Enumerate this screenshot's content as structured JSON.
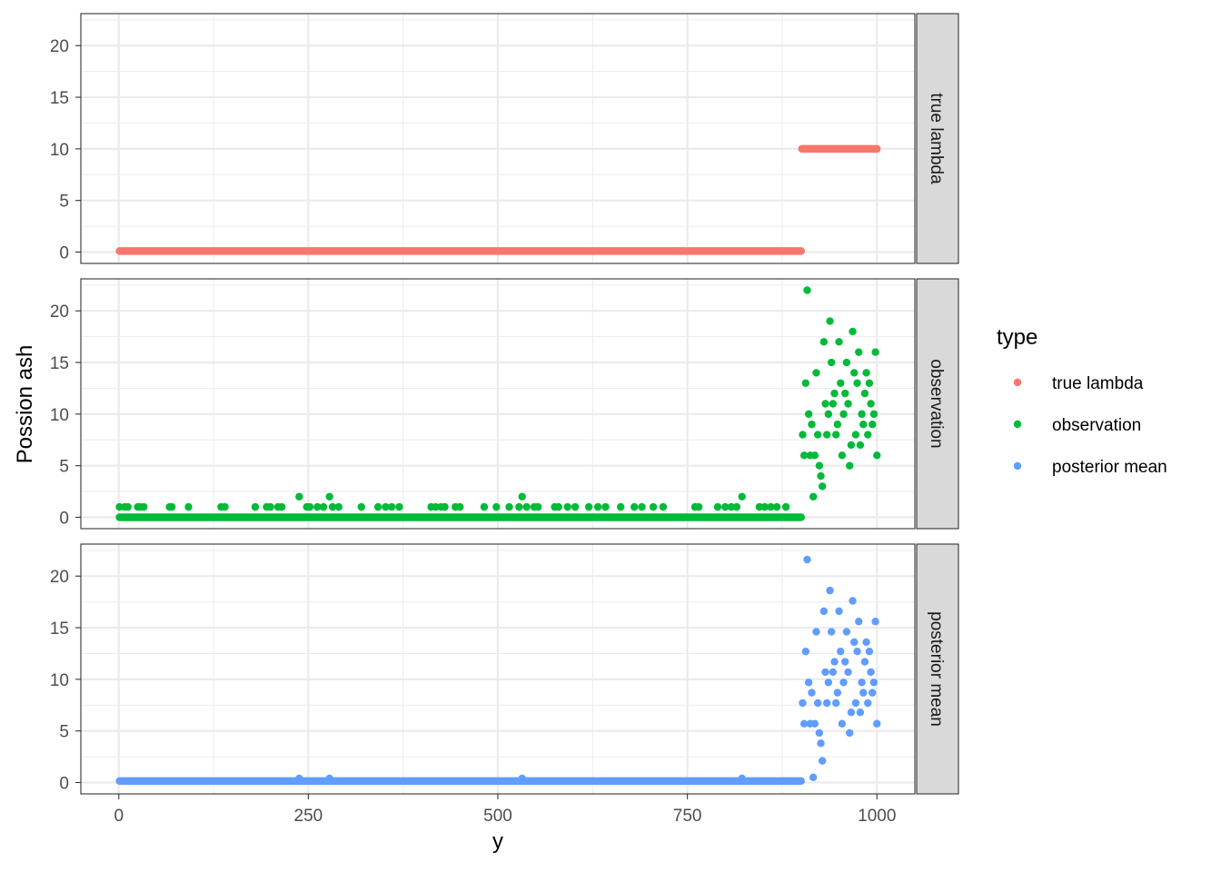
{
  "chart_data": {
    "type": "scatter",
    "xlabel": "y",
    "ylabel": "Possion ash",
    "xlim": [
      -50,
      1050
    ],
    "ylim": [
      -1.1,
      23.1
    ],
    "x_ticks": [
      0,
      250,
      500,
      750,
      1000
    ],
    "x_tick_labels": [
      "0",
      "250",
      "500",
      "750",
      "1000"
    ],
    "y_ticks": [
      0,
      5,
      10,
      15,
      20
    ],
    "y_tick_labels": [
      "0",
      "5",
      "10",
      "15",
      "20"
    ],
    "grid": true,
    "facets": [
      "true lambda",
      "observation",
      "posterior mean"
    ],
    "legend": {
      "title": "type",
      "position": "right",
      "entries": [
        {
          "label": "true lambda",
          "color": "#F8766D"
        },
        {
          "label": "observation",
          "color": "#00BA38"
        },
        {
          "label": "posterior mean",
          "color": "#619CFF"
        }
      ]
    },
    "series": [
      {
        "name": "true lambda",
        "color": "#F8766D",
        "segments": [
          {
            "x_start": 1,
            "x_end": 900,
            "value": 0.1
          },
          {
            "x_start": 901,
            "x_end": 1000,
            "value": 10
          }
        ]
      },
      {
        "name": "observation",
        "color": "#00BA38",
        "baseline": {
          "x_start": 1,
          "x_end": 900,
          "value": 0
        },
        "points_x": [
          1,
          8,
          12,
          25,
          28,
          33,
          67,
          70,
          92,
          135,
          140,
          180,
          195,
          200,
          210,
          215,
          238,
          248,
          252,
          262,
          270,
          278,
          282,
          290,
          320,
          342,
          352,
          360,
          370,
          412,
          418,
          425,
          430,
          444,
          450,
          482,
          498,
          515,
          528,
          532,
          538,
          548,
          553,
          575,
          580,
          592,
          602,
          620,
          632,
          642,
          662,
          680,
          690,
          705,
          718,
          760,
          765,
          790,
          800,
          808,
          815,
          822,
          845,
          852,
          860,
          868,
          880,
          902,
          904,
          906,
          908,
          910,
          912,
          914,
          916,
          918,
          920,
          922,
          924,
          926,
          928,
          930,
          932,
          934,
          936,
          938,
          940,
          942,
          944,
          946,
          948,
          950,
          952,
          954,
          956,
          958,
          960,
          962,
          964,
          966,
          968,
          970,
          972,
          974,
          976,
          978,
          980,
          982,
          984,
          986,
          988,
          990,
          992,
          994,
          996,
          998,
          1000
        ],
        "points_y": [
          1,
          1,
          1,
          1,
          1,
          1,
          1,
          1,
          1,
          1,
          1,
          1,
          1,
          1,
          1,
          1,
          2,
          1,
          1,
          1,
          1,
          2,
          1,
          1,
          1,
          1,
          1,
          1,
          1,
          1,
          1,
          1,
          1,
          1,
          1,
          1,
          1,
          1,
          1,
          2,
          1,
          1,
          1,
          1,
          1,
          1,
          1,
          1,
          1,
          1,
          1,
          1,
          1,
          1,
          1,
          1,
          1,
          1,
          1,
          1,
          1,
          2,
          1,
          1,
          1,
          1,
          1,
          8,
          6,
          13,
          22,
          10,
          6,
          9,
          2,
          6,
          14,
          8,
          5,
          4,
          3,
          17,
          11,
          8,
          10,
          19,
          15,
          11,
          12,
          8,
          9,
          17,
          13,
          6,
          10,
          12,
          15,
          11,
          5,
          7,
          18,
          14,
          8,
          13,
          16,
          7,
          10,
          9,
          12,
          14,
          8,
          13,
          11,
          9,
          10,
          16,
          6
        ]
      },
      {
        "name": "posterior mean",
        "color": "#619CFF",
        "baseline": {
          "x_start": 1,
          "x_end": 900,
          "value": 0.15
        },
        "points_x": [
          238,
          278,
          532,
          822,
          902,
          904,
          906,
          908,
          910,
          912,
          914,
          916,
          918,
          920,
          922,
          924,
          926,
          928,
          930,
          932,
          934,
          936,
          938,
          940,
          942,
          944,
          946,
          948,
          950,
          952,
          954,
          956,
          958,
          960,
          962,
          964,
          966,
          968,
          970,
          972,
          974,
          976,
          978,
          980,
          982,
          984,
          986,
          988,
          990,
          992,
          994,
          996,
          998,
          1000
        ],
        "points_y": [
          0.4,
          0.4,
          0.4,
          0.4,
          7.7,
          5.7,
          12.7,
          21.6,
          9.7,
          5.7,
          8.7,
          0.5,
          5.7,
          14.6,
          7.7,
          4.8,
          3.8,
          2.1,
          16.6,
          10.7,
          7.7,
          9.7,
          18.6,
          14.6,
          10.7,
          11.7,
          7.7,
          8.7,
          16.6,
          12.7,
          5.7,
          9.7,
          11.7,
          14.6,
          10.7,
          4.8,
          6.8,
          17.6,
          13.6,
          7.7,
          12.7,
          15.6,
          6.8,
          9.7,
          8.7,
          11.7,
          13.6,
          7.7,
          12.7,
          10.7,
          8.7,
          9.7,
          15.6,
          5.7
        ]
      }
    ]
  }
}
